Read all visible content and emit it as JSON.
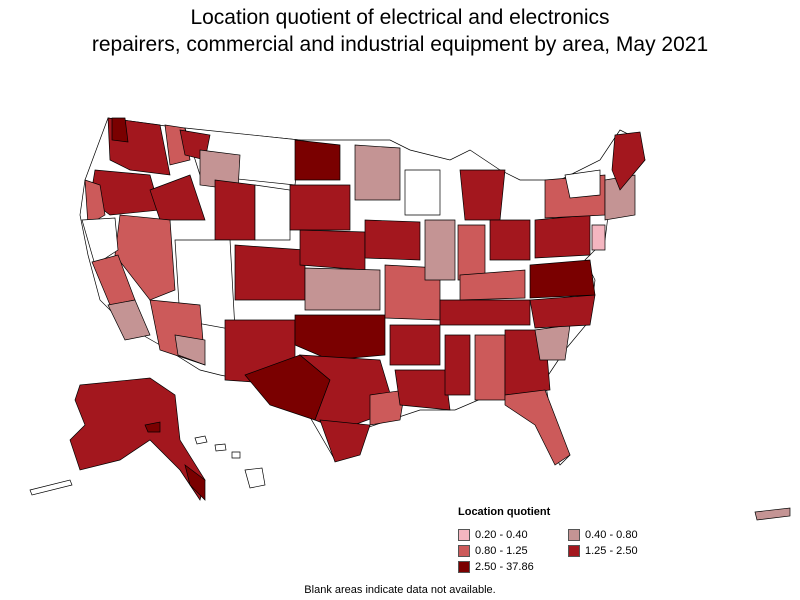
{
  "title_lines": [
    "Location quotient of electrical and electronics",
    "repairers, commercial and industrial equipment by area, May 2021"
  ],
  "legend": {
    "title": "Location quotient",
    "items": [
      {
        "label": "0.20 - 0.40",
        "color": "#f4b6c0"
      },
      {
        "label": "0.40 - 0.80",
        "color": "#c49494"
      },
      {
        "label": "0.80 - 1.25",
        "color": "#cc5a5a"
      },
      {
        "label": "1.25 - 2.50",
        "color": "#a3171e"
      },
      {
        "label": "2.50 - 37.86",
        "color": "#7a0000"
      }
    ]
  },
  "footnote": "Blank areas indicate data not available.",
  "colors": {
    "no_data": "#ffffff",
    "border": "#000000"
  }
}
